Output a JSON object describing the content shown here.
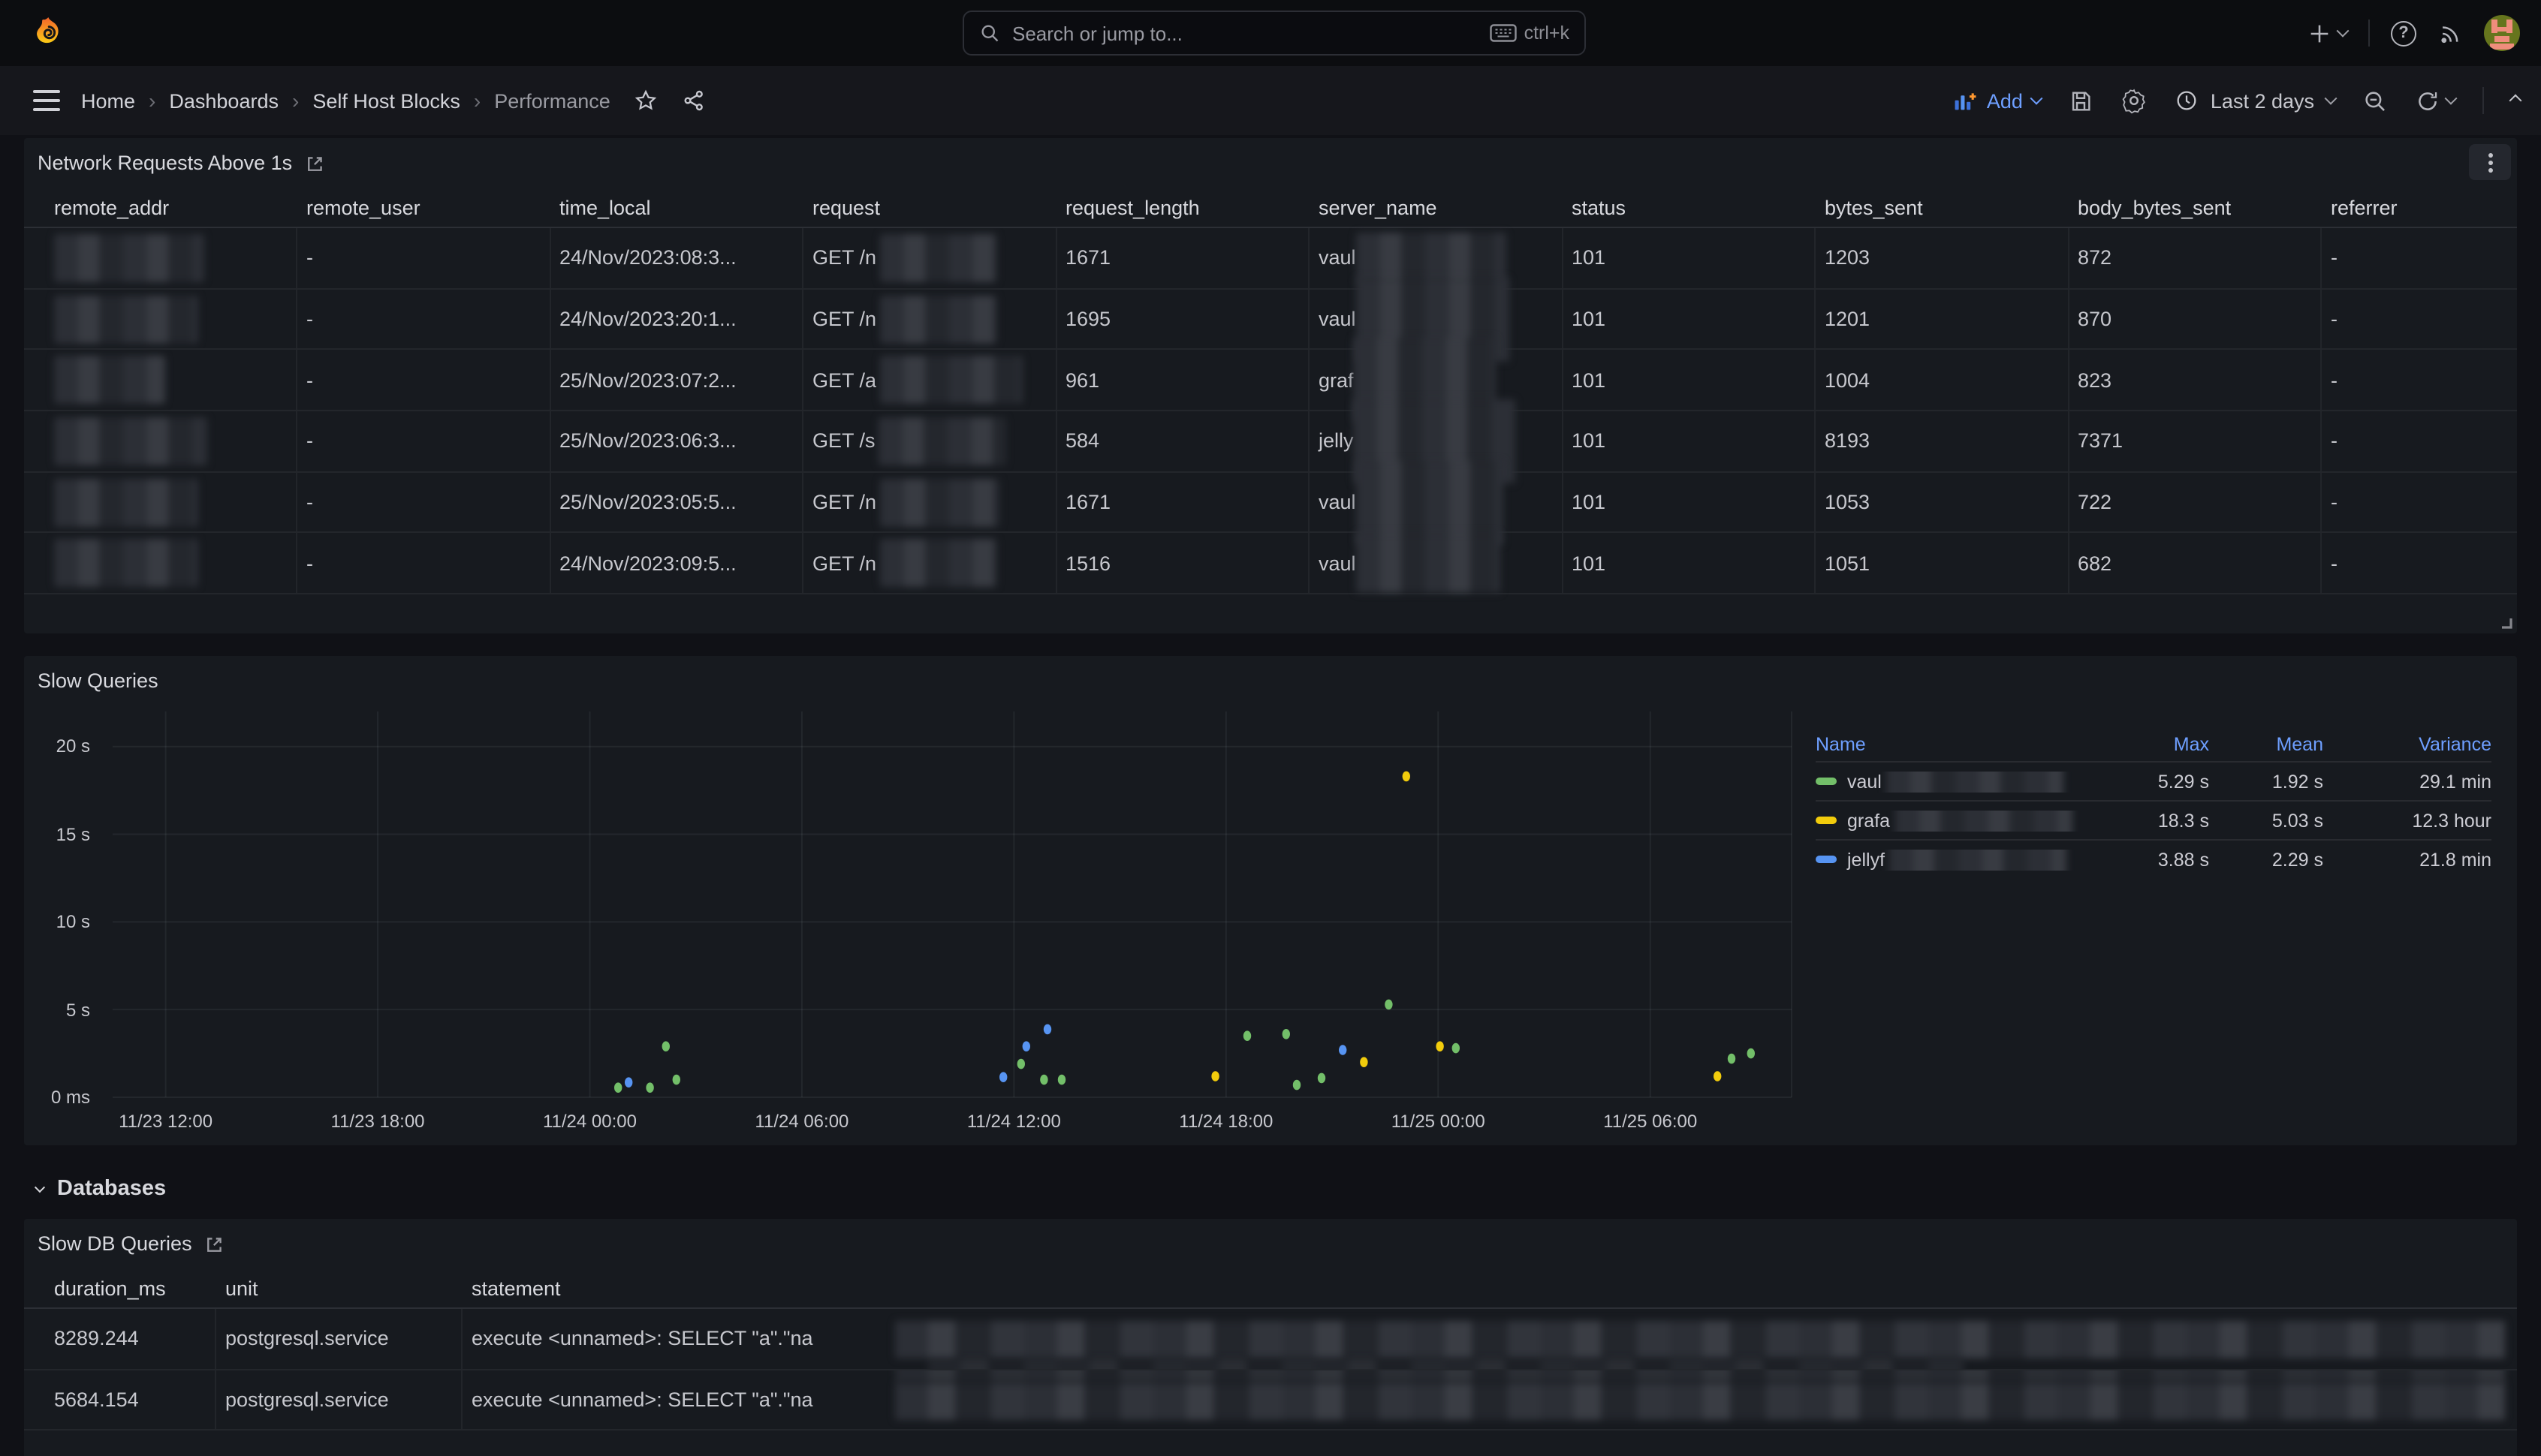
{
  "topnav": {
    "search_placeholder": "Search or jump to...",
    "shortcut": "ctrl+k"
  },
  "breadcrumb": {
    "items": [
      "Home",
      "Dashboards",
      "Self Host Blocks",
      "Performance"
    ]
  },
  "toolbar": {
    "add_label": "Add",
    "time_range": "Last 2 days"
  },
  "colors": {
    "green": "#73bf69",
    "yellow": "#f2cc0c",
    "blue": "#5794f2",
    "link": "#6e9fff"
  },
  "network_panel": {
    "title": "Network Requests Above 1s",
    "columns": [
      "remote_addr",
      "remote_user",
      "time_local",
      "request",
      "request_length",
      "server_name",
      "status",
      "bytes_sent",
      "body_bytes_sent",
      "referrer"
    ],
    "rows": [
      {
        "remote_user": "-",
        "time_local": "24/Nov/2023:08:3...",
        "request_prefix": "GET /n",
        "request_length": "1671",
        "server_prefix": "vaul",
        "status": "101",
        "bytes_sent": "1203",
        "body_bytes_sent": "872",
        "referrer": "-",
        "addr_w": 100,
        "req_w": 78,
        "srv_w": 100,
        "srv_h": 34
      },
      {
        "remote_user": "-",
        "time_local": "24/Nov/2023:20:1...",
        "request_prefix": "GET /n",
        "request_length": "1695",
        "server_prefix": "vaul",
        "status": "101",
        "bytes_sent": "1201",
        "body_bytes_sent": "870",
        "referrer": "-",
        "addr_w": 96,
        "req_w": 78,
        "srv_w": 102,
        "srv_h": 56
      },
      {
        "remote_user": "-",
        "time_local": "25/Nov/2023:07:2...",
        "request_prefix": "GET /a",
        "request_length": "961",
        "server_prefix": "graf",
        "status": "101",
        "bytes_sent": "1004",
        "body_bytes_sent": "823",
        "referrer": "-",
        "addr_w": 74,
        "req_w": 95,
        "srv_w": 95,
        "srv_h": 56
      },
      {
        "remote_user": "-",
        "time_local": "25/Nov/2023:06:3...",
        "request_prefix": "GET /s",
        "request_length": "584",
        "server_prefix": "jelly",
        "status": "101",
        "bytes_sent": "8193",
        "body_bytes_sent": "7371",
        "referrer": "-",
        "addr_w": 102,
        "req_w": 85,
        "srv_w": 108,
        "srv_h": 56
      },
      {
        "remote_user": "-",
        "time_local": "25/Nov/2023:05:5...",
        "request_prefix": "GET /n",
        "request_length": "1671",
        "server_prefix": "vaul",
        "status": "101",
        "bytes_sent": "1053",
        "body_bytes_sent": "722",
        "referrer": "-",
        "addr_w": 96,
        "req_w": 80,
        "srv_w": 98,
        "srv_h": 56
      },
      {
        "remote_user": "-",
        "time_local": "24/Nov/2023:09:5...",
        "request_prefix": "GET /n",
        "request_length": "1516",
        "server_prefix": "vaul",
        "status": "101",
        "bytes_sent": "1051",
        "body_bytes_sent": "682",
        "referrer": "-",
        "addr_w": 96,
        "req_w": 78,
        "srv_w": 96,
        "srv_h": 40
      }
    ]
  },
  "slow_queries_panel": {
    "title": "Slow Queries",
    "legend": {
      "headers": [
        "Name",
        "Max",
        "Mean",
        "Variance"
      ],
      "rows": [
        {
          "name_prefix": "vaul",
          "color": "#73bf69",
          "max": "5.29 s",
          "mean": "1.92 s",
          "variance": "29.1 min"
        },
        {
          "name_prefix": "grafa",
          "color": "#f2cc0c",
          "max": "18.3 s",
          "mean": "5.03 s",
          "variance": "12.3 hour"
        },
        {
          "name_prefix": "jellyf",
          "color": "#5794f2",
          "max": "3.88 s",
          "mean": "2.29 s",
          "variance": "21.8 min"
        }
      ]
    },
    "chart_data": {
      "type": "scatter",
      "title": "Slow Queries",
      "x_unit": "hours after 11/23 12:00",
      "xlim": [
        -1.5,
        46
      ],
      "ylim": [
        0,
        22
      ],
      "grid": true,
      "legend_position": "right-table",
      "x_ticks": [
        {
          "t": 0,
          "label": "11/23 12:00"
        },
        {
          "t": 6,
          "label": "11/23 18:00"
        },
        {
          "t": 12,
          "label": "11/24 00:00"
        },
        {
          "t": 18,
          "label": "11/24 06:00"
        },
        {
          "t": 24,
          "label": "11/24 12:00"
        },
        {
          "t": 30,
          "label": "11/24 18:00"
        },
        {
          "t": 36,
          "label": "11/25 00:00"
        },
        {
          "t": 42,
          "label": "11/25 06:00"
        }
      ],
      "y_ticks": [
        {
          "s": 0,
          "label": "0 ms"
        },
        {
          "s": 5,
          "label": "5 s"
        },
        {
          "s": 10,
          "label": "10 s"
        },
        {
          "s": 15,
          "label": "15 s"
        },
        {
          "s": 20,
          "label": "20 s"
        }
      ],
      "series": [
        {
          "name_prefix": "vaul",
          "color": "#73bf69",
          "points": [
            [
              12.8,
              0.55
            ],
            [
              13.7,
              0.55
            ],
            [
              14.45,
              1.0
            ],
            [
              14.15,
              2.9
            ],
            [
              24.2,
              1.9
            ],
            [
              24.85,
              1.0
            ],
            [
              25.35,
              1.0
            ],
            [
              30.6,
              3.5
            ],
            [
              31.7,
              3.6
            ],
            [
              32.0,
              0.7
            ],
            [
              32.7,
              1.1
            ],
            [
              34.6,
              5.29
            ],
            [
              36.5,
              2.8
            ],
            [
              44.3,
              2.2
            ],
            [
              44.85,
              2.5
            ]
          ]
        },
        {
          "name_prefix": "grafa",
          "color": "#f2cc0c",
          "points": [
            [
              29.7,
              1.2
            ],
            [
              33.9,
              2.0
            ],
            [
              35.1,
              18.3
            ],
            [
              36.05,
              2.9
            ],
            [
              43.9,
              1.2
            ]
          ]
        },
        {
          "name_prefix": "jellyf",
          "color": "#5794f2",
          "points": [
            [
              13.1,
              0.85
            ],
            [
              23.7,
              1.15
            ],
            [
              24.35,
              2.9
            ],
            [
              24.95,
              3.88
            ],
            [
              33.3,
              2.7
            ]
          ]
        }
      ]
    }
  },
  "sections": {
    "databases_label": "Databases"
  },
  "db_panel": {
    "title": "Slow DB Queries",
    "columns": [
      "duration_ms",
      "unit",
      "statement"
    ],
    "rows": [
      {
        "duration_ms": "8289.244",
        "unit": "postgresql.service",
        "statement_prefix": "execute <unnamed>: SELECT \"a\".\"na"
      },
      {
        "duration_ms": "5684.154",
        "unit": "postgresql.service",
        "statement_prefix": "execute <unnamed>: SELECT \"a\".\"na"
      }
    ]
  }
}
